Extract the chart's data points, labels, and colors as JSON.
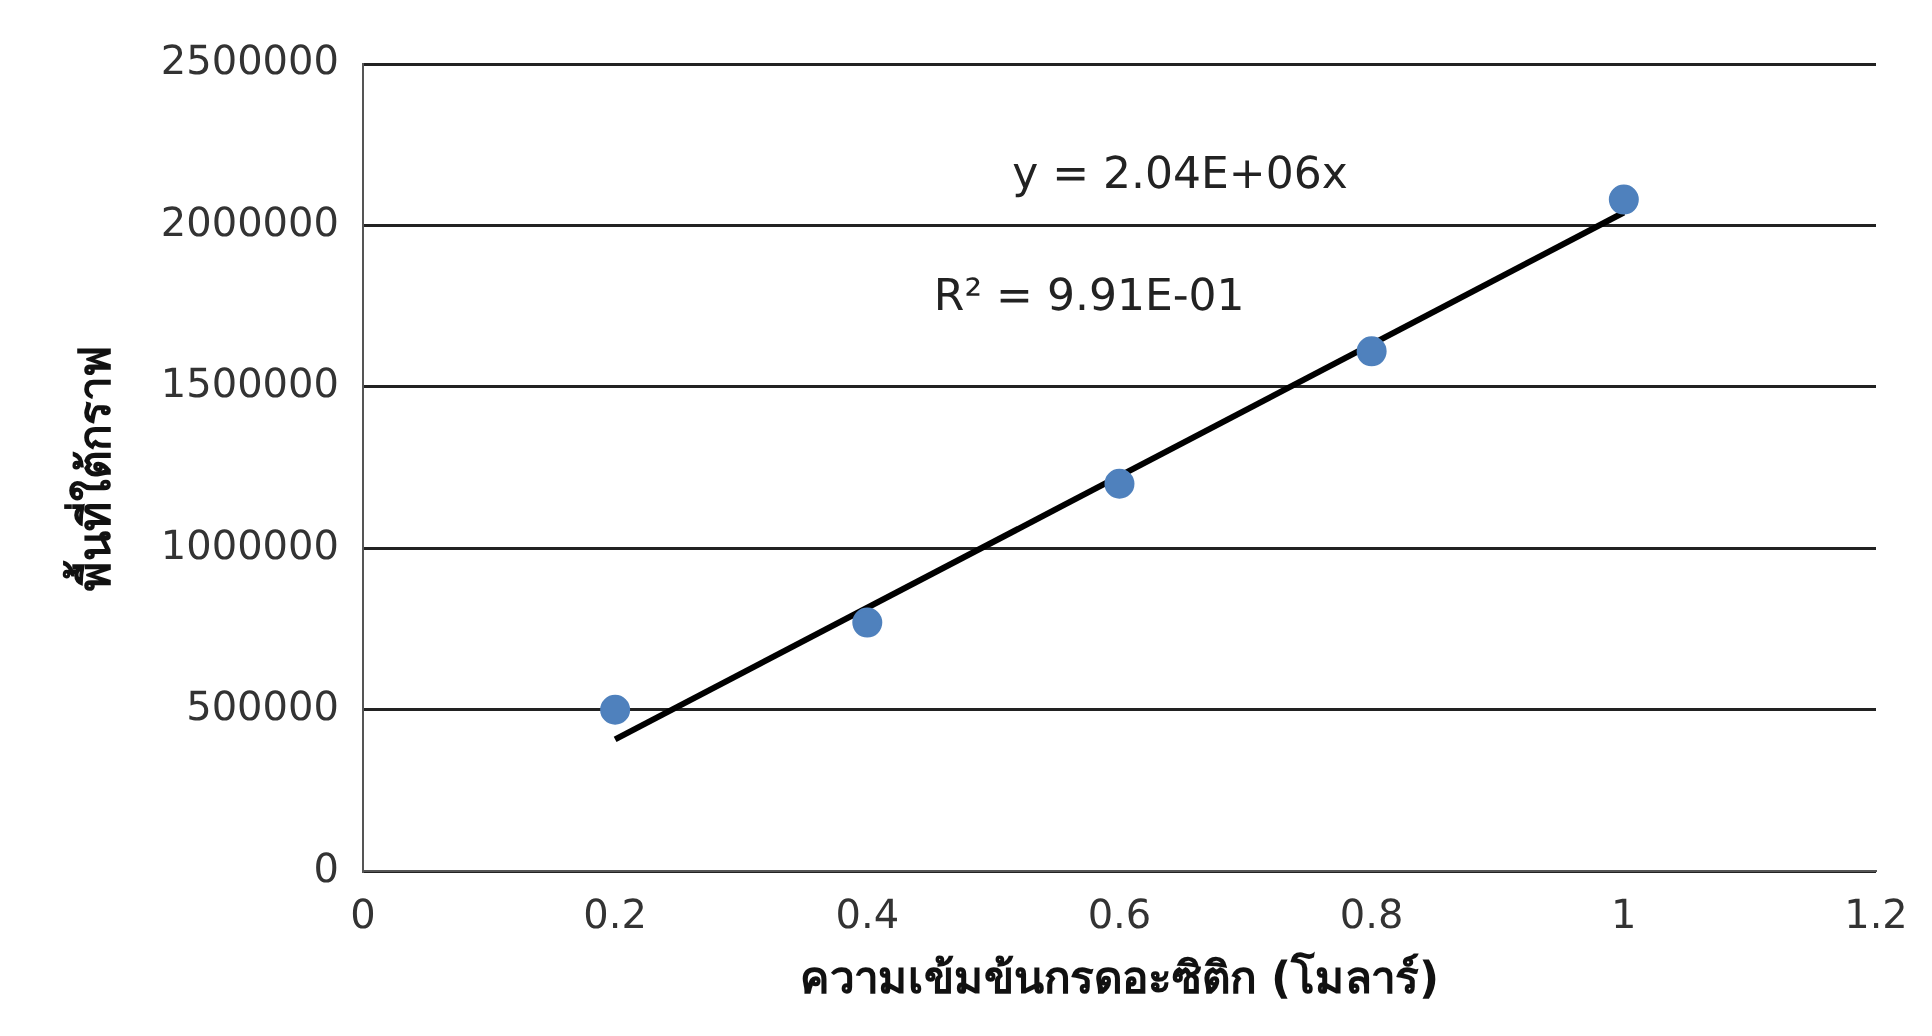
{
  "chart_data": {
    "type": "scatter",
    "xlabel": "ความเข้มข้นกรดอะซิติก (โมลาร์)",
    "ylabel": "พื้นที่ใต้กราฟ",
    "x": [
      0.2,
      0.4,
      0.6,
      0.8,
      1.0
    ],
    "series": [
      {
        "type": "scatter",
        "color": "#4f81bd",
        "marker": "circle",
        "values": [
          500000,
          770000,
          1200000,
          1610000,
          2080000
        ]
      },
      {
        "type": "line",
        "color": "#000000",
        "x": [
          0.2,
          1.0
        ],
        "values": [
          408000,
          2040000
        ],
        "line_style": "solid"
      }
    ],
    "xlim": [
      0,
      1.2
    ],
    "xticks": [
      0,
      0.2,
      0.4,
      0.6,
      0.8,
      1,
      1.2
    ],
    "ylim": [
      0,
      2500000
    ],
    "yticks": [
      0,
      500000,
      1000000,
      1500000,
      2000000,
      2500000
    ],
    "grid": "y",
    "legend": false,
    "annotations": [
      "y = 2.04E+06x",
      "R² = 9.91E-01"
    ]
  }
}
